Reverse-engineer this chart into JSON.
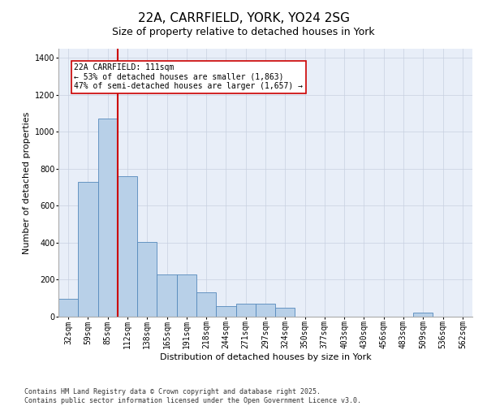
{
  "title": "22A, CARRFIELD, YORK, YO24 2SG",
  "subtitle": "Size of property relative to detached houses in York",
  "xlabel": "Distribution of detached houses by size in York",
  "ylabel": "Number of detached properties",
  "categories": [
    "32sqm",
    "59sqm",
    "85sqm",
    "112sqm",
    "138sqm",
    "165sqm",
    "191sqm",
    "218sqm",
    "244sqm",
    "271sqm",
    "297sqm",
    "324sqm",
    "350sqm",
    "377sqm",
    "403sqm",
    "430sqm",
    "456sqm",
    "483sqm",
    "509sqm",
    "536sqm",
    "562sqm"
  ],
  "values": [
    95,
    730,
    1070,
    760,
    405,
    230,
    230,
    130,
    55,
    70,
    70,
    50,
    0,
    0,
    0,
    0,
    0,
    0,
    20,
    0,
    0
  ],
  "bar_color": "#b8d0e8",
  "bar_edge_color": "#5588bb",
  "annotation_label": "22A CARRFIELD: 111sqm",
  "annotation_line1": "← 53% of detached houses are smaller (1,863)",
  "annotation_line2": "47% of semi-detached houses are larger (1,657) →",
  "annotation_box_facecolor": "#ffffff",
  "annotation_box_edgecolor": "#cc0000",
  "marker_line_color": "#cc0000",
  "ylim": [
    0,
    1450
  ],
  "yticks": [
    0,
    200,
    400,
    600,
    800,
    1000,
    1200,
    1400
  ],
  "bg_color": "#e8eef8",
  "grid_color": "#c8d0e0",
  "footer_line1": "Contains HM Land Registry data © Crown copyright and database right 2025.",
  "footer_line2": "Contains public sector information licensed under the Open Government Licence v3.0.",
  "title_fontsize": 11,
  "subtitle_fontsize": 9,
  "axis_label_fontsize": 8,
  "tick_fontsize": 7,
  "annotation_fontsize": 7,
  "footer_fontsize": 6
}
